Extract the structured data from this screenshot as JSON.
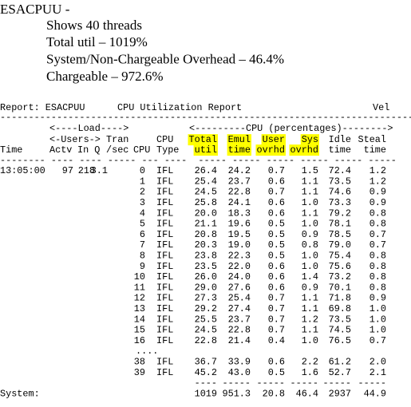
{
  "heading": {
    "title": "ESACPUU -",
    "bullets": [
      "Shows 40 threads",
      "Total util – 1019%",
      "System/Non-Chargeable Overhead – 46.4%",
      "Chargeable – 972.6%"
    ]
  },
  "report": {
    "label": "Report: ESACPUU",
    "name": "CPU Utilization Report",
    "right": "Vel",
    "rule": "-------------------------------------------------------------------------",
    "group_headers": [
      "<----Load---->",
      "<---------CPU (percentages)-------->"
    ],
    "header_row_1": [
      "<-Users->",
      "Tran",
      "CPU",
      "Total",
      "Emul",
      "User",
      "Sys",
      "Idle",
      "Steal"
    ],
    "header_row_2": [
      "Time",
      "Actv",
      "In Q",
      "/sec",
      "CPU",
      "Type",
      "util",
      "time",
      "ovrhd",
      "ovrhd",
      "time",
      "time"
    ],
    "header_rule": "-------- ---- ---- ----- --- ----  ----- ----- ----- ----- ----- -----",
    "rows": [
      {
        "time": "13:05:00",
        "actv": "97",
        "in_q": "218",
        "tran": "3.1",
        "cpu": "0",
        "type": "IFL",
        "values": [
          "26.4",
          "24.2",
          "0.7",
          "1.5",
          "72.4",
          "1.2"
        ]
      },
      {
        "cpu": "1",
        "type": "IFL",
        "values": [
          "25.4",
          "23.7",
          "0.6",
          "1.1",
          "73.5",
          "1.2"
        ]
      },
      {
        "cpu": "2",
        "type": "IFL",
        "values": [
          "24.5",
          "22.8",
          "0.7",
          "1.1",
          "74.6",
          "0.9"
        ]
      },
      {
        "cpu": "3",
        "type": "IFL",
        "values": [
          "25.8",
          "24.1",
          "0.6",
          "1.0",
          "73.3",
          "0.9"
        ]
      },
      {
        "cpu": "4",
        "type": "IFL",
        "values": [
          "20.0",
          "18.3",
          "0.6",
          "1.1",
          "79.2",
          "0.8"
        ]
      },
      {
        "cpu": "5",
        "type": "IFL",
        "values": [
          "21.1",
          "19.6",
          "0.5",
          "1.0",
          "78.1",
          "0.8"
        ]
      },
      {
        "cpu": "6",
        "type": "IFL",
        "values": [
          "20.8",
          "19.5",
          "0.5",
          "0.9",
          "78.5",
          "0.7"
        ]
      },
      {
        "cpu": "7",
        "type": "IFL",
        "values": [
          "20.3",
          "19.0",
          "0.5",
          "0.8",
          "79.0",
          "0.7"
        ]
      },
      {
        "cpu": "8",
        "type": "IFL",
        "values": [
          "23.8",
          "22.3",
          "0.5",
          "1.0",
          "75.4",
          "0.8"
        ]
      },
      {
        "cpu": "9",
        "type": "IFL",
        "values": [
          "23.5",
          "22.0",
          "0.6",
          "1.0",
          "75.6",
          "0.8"
        ]
      },
      {
        "cpu": "10",
        "type": "IFL",
        "values": [
          "26.0",
          "24.0",
          "0.6",
          "1.4",
          "73.2",
          "0.8"
        ]
      },
      {
        "cpu": "11",
        "type": "IFL",
        "values": [
          "29.0",
          "27.6",
          "0.6",
          "0.9",
          "70.1",
          "0.8"
        ]
      },
      {
        "cpu": "12",
        "type": "IFL",
        "values": [
          "27.3",
          "25.4",
          "0.7",
          "1.1",
          "71.8",
          "0.9"
        ]
      },
      {
        "cpu": "13",
        "type": "IFL",
        "values": [
          "29.2",
          "27.4",
          "0.7",
          "1.1",
          "69.8",
          "1.0"
        ]
      },
      {
        "cpu": "14",
        "type": "IFL",
        "values": [
          "25.5",
          "23.7",
          "0.7",
          "1.2",
          "73.5",
          "1.0"
        ]
      },
      {
        "cpu": "15",
        "type": "IFL",
        "values": [
          "24.5",
          "22.8",
          "0.7",
          "1.1",
          "74.5",
          "1.0"
        ]
      },
      {
        "cpu": "16",
        "type": "IFL",
        "values": [
          "22.8",
          "21.4",
          "0.4",
          "1.0",
          "76.5",
          "0.7"
        ]
      }
    ],
    "ellipsis": "....",
    "rows_after": [
      {
        "cpu": "38",
        "type": "IFL",
        "values": [
          "36.7",
          "33.9",
          "0.6",
          "2.2",
          "61.2",
          "2.0"
        ]
      },
      {
        "cpu": "39",
        "type": "IFL",
        "values": [
          "45.2",
          "43.0",
          "0.5",
          "1.6",
          "52.7",
          "2.1"
        ]
      }
    ],
    "total_rule": [
      "----",
      "-----",
      "-----",
      "-----",
      "-----",
      "-----"
    ],
    "total_label": "System:",
    "totals": [
      "1019",
      "951.3",
      "20.8",
      "46.4",
      "2937",
      "44.9"
    ]
  }
}
